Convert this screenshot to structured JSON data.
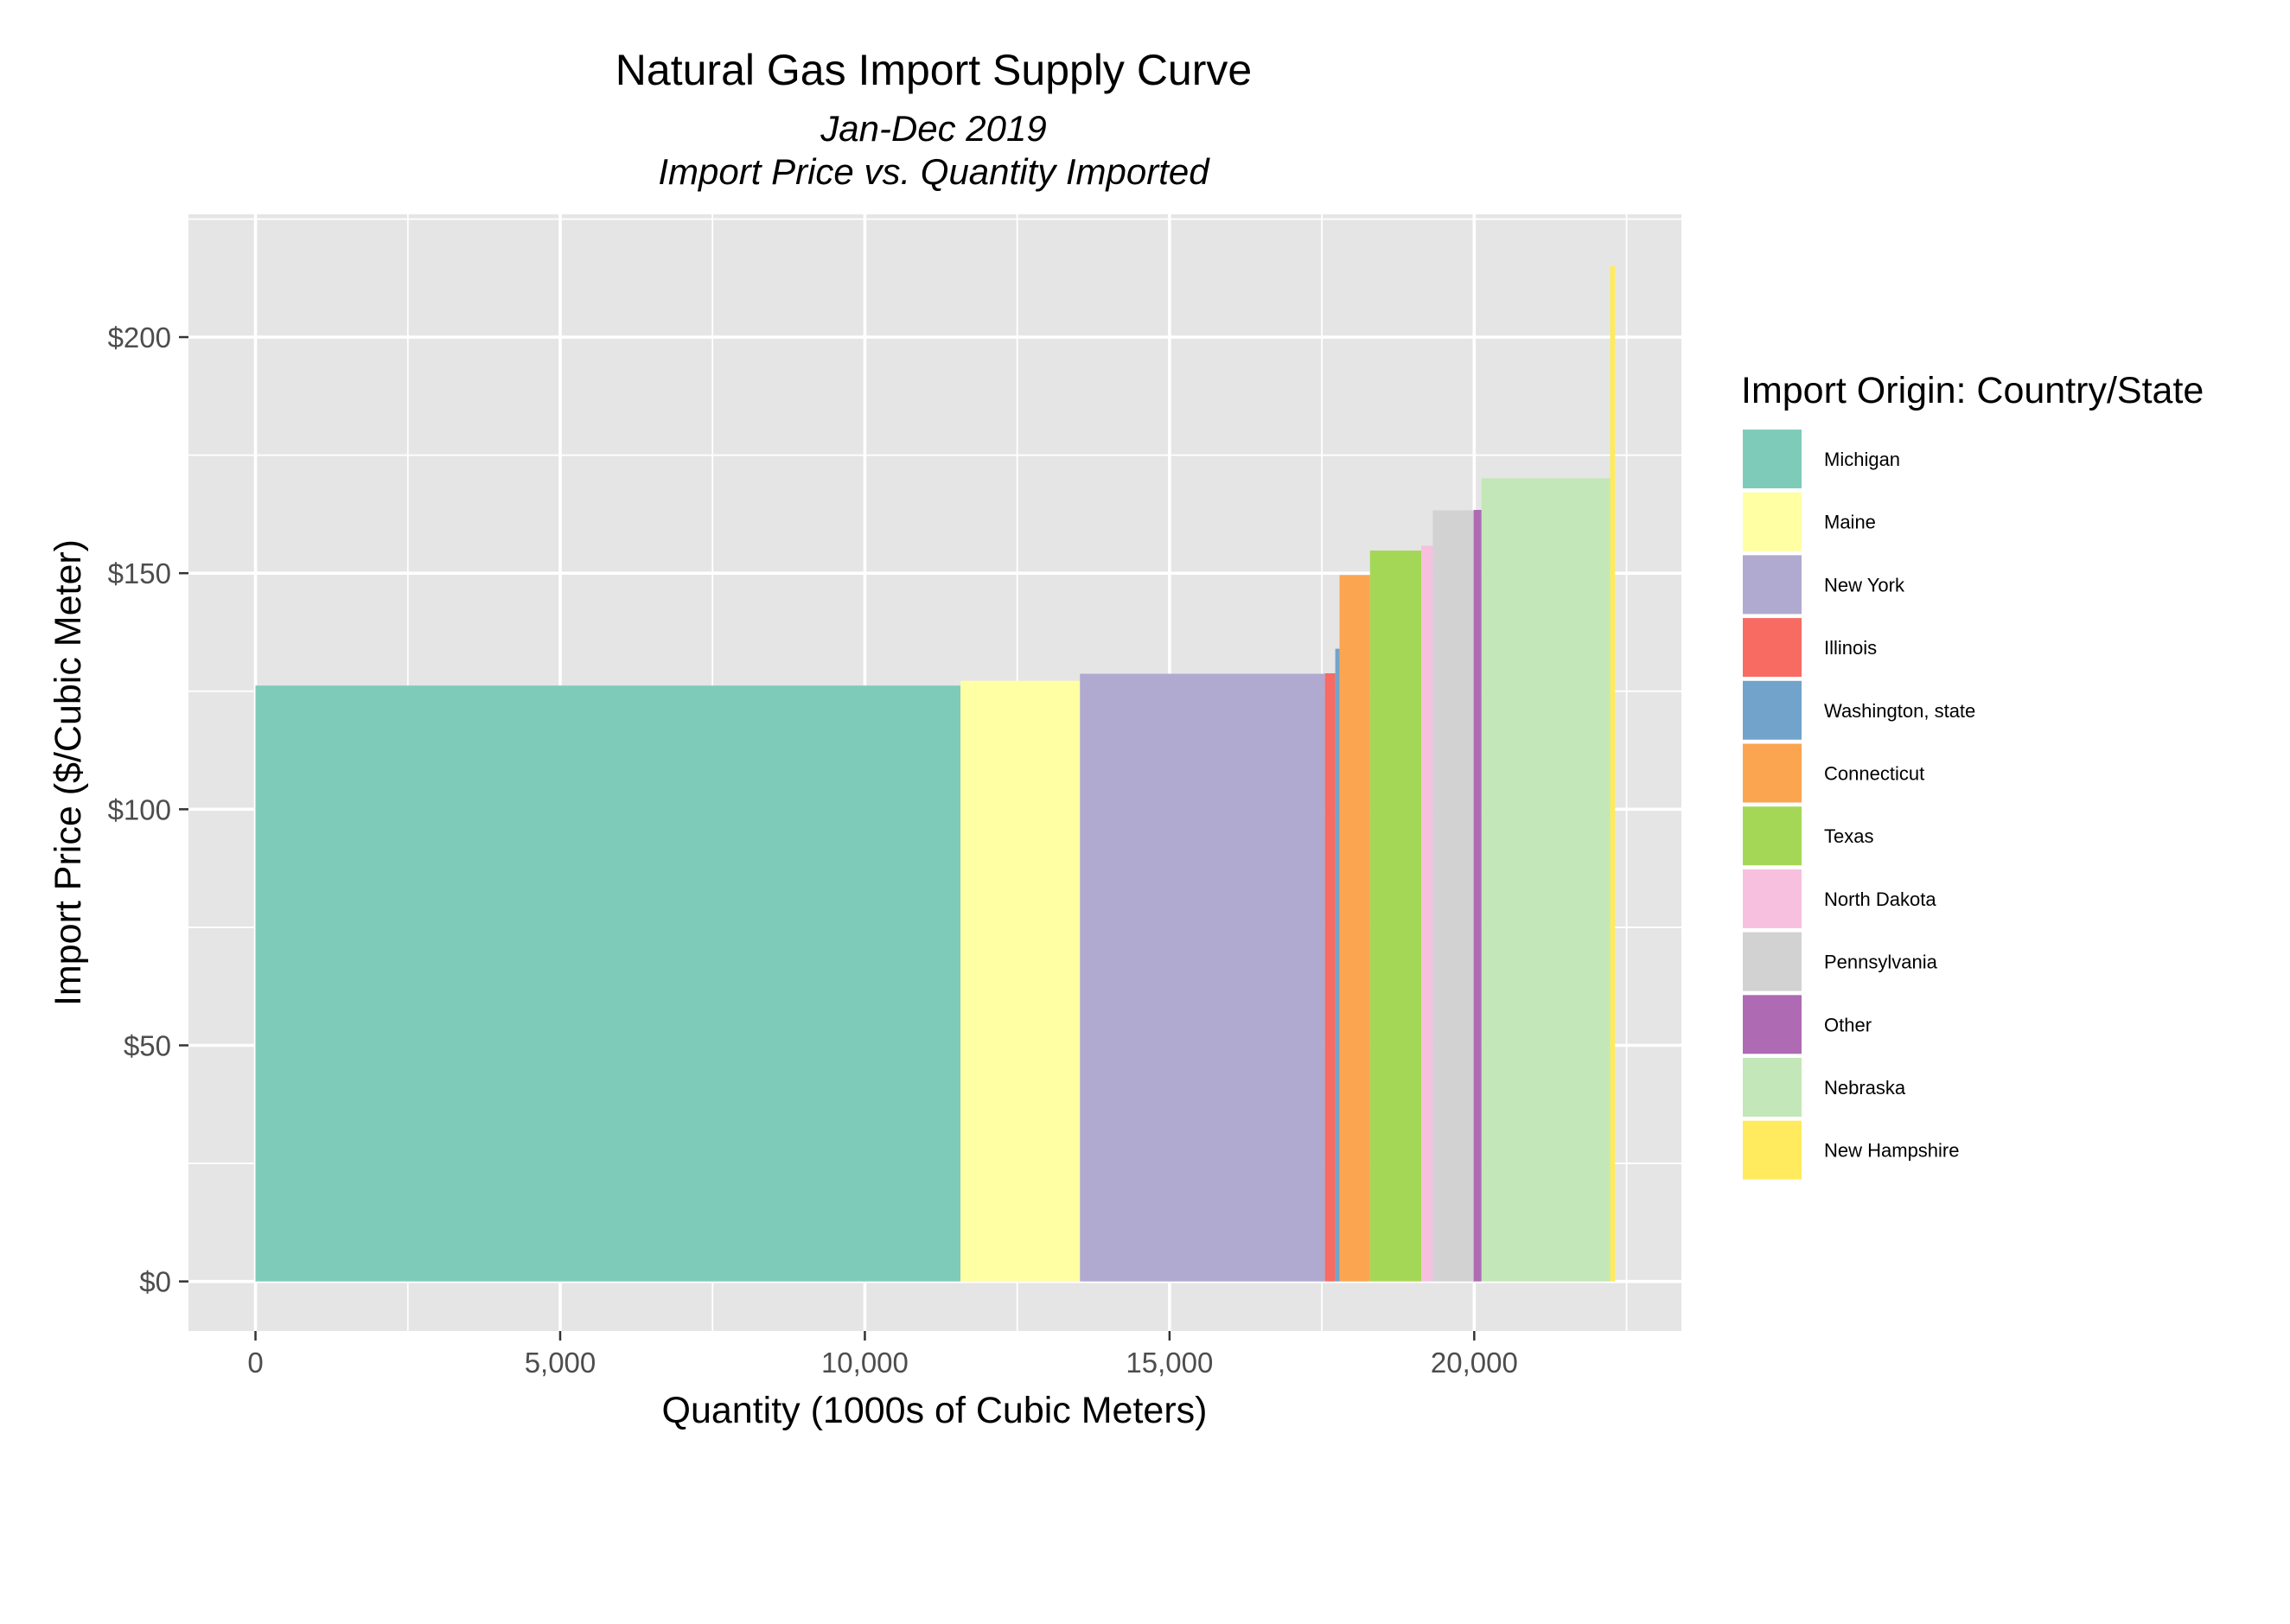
{
  "chart_data": {
    "type": "bar",
    "title": "Natural Gas Import Supply Curve",
    "subtitle_lines": [
      "Jan-Dec 2019",
      "Import Price vs. Quantity Imported"
    ],
    "xlabel": "Quantity (1000s of Cubic Meters)",
    "ylabel": "Import Price ($/Cubic Meter)",
    "xlim": [
      -1100,
      23400
    ],
    "ylim": [
      -10.5,
      226
    ],
    "x_ticks": [
      {
        "value": 0,
        "label": "0"
      },
      {
        "value": 5000,
        "label": "5,000"
      },
      {
        "value": 10000,
        "label": "10,000"
      },
      {
        "value": 15000,
        "label": "15,000"
      },
      {
        "value": 20000,
        "label": "20,000"
      }
    ],
    "x_minor": [
      2500,
      7500,
      12500,
      17500,
      22500
    ],
    "y_ticks": [
      {
        "value": 0,
        "label": "$0"
      },
      {
        "value": 50,
        "label": "$50"
      },
      {
        "value": 100,
        "label": "$100"
      },
      {
        "value": 150,
        "label": "$150"
      },
      {
        "value": 200,
        "label": "$200"
      }
    ],
    "y_minor": [
      25,
      75,
      125,
      175,
      225
    ],
    "grid": true,
    "legend_title": "Import Origin: Country/State",
    "legend_position": "right",
    "series": [
      {
        "name": "Michigan",
        "x_start": 0,
        "x_end": 11570,
        "price": 126.2,
        "color": "#7FCBBA"
      },
      {
        "name": "Maine",
        "x_start": 11570,
        "x_end": 13530,
        "price": 127.2,
        "color": "#FFFFA3"
      },
      {
        "name": "New York",
        "x_start": 13530,
        "x_end": 17550,
        "price": 128.7,
        "color": "#B0AAD0"
      },
      {
        "name": "Illinois",
        "x_start": 17550,
        "x_end": 17720,
        "price": 128.8,
        "color": "#F76B63"
      },
      {
        "name": "Washington, state",
        "x_start": 17720,
        "x_end": 17790,
        "price": 134.0,
        "color": "#72A3CA"
      },
      {
        "name": "Connecticut",
        "x_start": 17790,
        "x_end": 18290,
        "price": 149.6,
        "color": "#FBA551"
      },
      {
        "name": "Texas",
        "x_start": 18290,
        "x_end": 19130,
        "price": 154.8,
        "color": "#A5D757"
      },
      {
        "name": "North Dakota",
        "x_start": 19130,
        "x_end": 19320,
        "price": 155.8,
        "color": "#F7C0DF"
      },
      {
        "name": "Pennsylvania",
        "x_start": 19320,
        "x_end": 19990,
        "price": 163.3,
        "color": "#D2D2D2"
      },
      {
        "name": "Other",
        "x_start": 19990,
        "x_end": 20120,
        "price": 163.4,
        "color": "#AE6BB3"
      },
      {
        "name": "Nebraska",
        "x_start": 20120,
        "x_end": 22230,
        "price": 170.1,
        "color": "#C3E7B8"
      },
      {
        "name": "New Hampshire",
        "x_start": 22230,
        "x_end": 22310,
        "price": 215.0,
        "color": "#FFEB5D"
      }
    ]
  }
}
